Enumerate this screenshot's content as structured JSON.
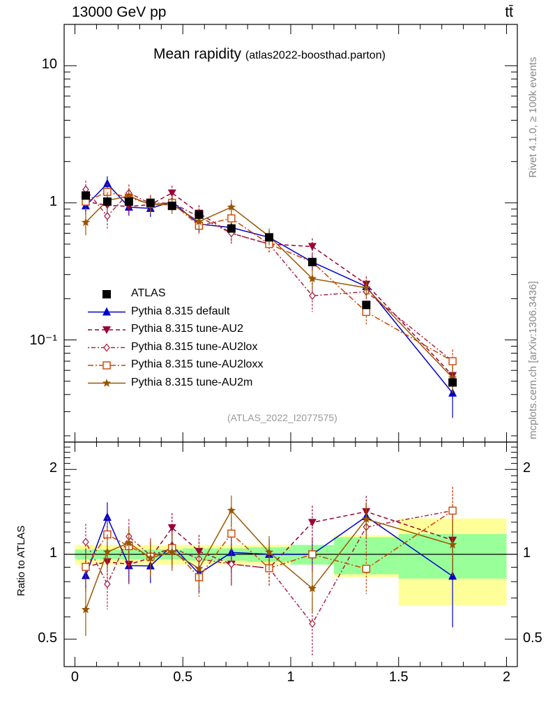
{
  "header": {
    "collision": "13000 GeV pp",
    "process": "tt̄"
  },
  "side": {
    "rivet": "Rivet 4.1.0, ≥ 100k events",
    "mcplots": "mcplots.cern.ch [arXiv:1306.3436]"
  },
  "chart_data": {
    "type": "line",
    "title": "Mean rapidity",
    "subtitle": "(atlas2022-boosthad.parton)",
    "analysis_label": "(ATLAS_2022_I2077575)",
    "xlabel": "",
    "ylabel": "",
    "ratio_ylabel": "Ratio to ATLAS",
    "xlim": [
      -0.05,
      2.05
    ],
    "ylim": [
      0.018,
      20
    ],
    "ylog": true,
    "ratio_ylim": [
      0.4,
      2.5
    ],
    "x_ticks": [
      "0",
      "0.5",
      "1",
      "1.5",
      "2"
    ],
    "x_tick_values": [
      0,
      0.5,
      1,
      1.5,
      2
    ],
    "y_ticks": [
      "10",
      "1",
      "10⁻¹"
    ],
    "y_tick_values": [
      10,
      1,
      0.1
    ],
    "ratio_ticks": [
      "2",
      "1",
      "0.5"
    ],
    "ratio_tick_values": [
      2,
      1,
      0.5
    ],
    "x": [
      0.05,
      0.15,
      0.25,
      0.35,
      0.45,
      0.575,
      0.725,
      0.9,
      1.1,
      1.35,
      1.75
    ],
    "bin_edges": [
      0,
      0.1,
      0.2,
      0.3,
      0.4,
      0.5,
      0.65,
      0.8,
      1.0,
      1.2,
      1.5,
      2.0
    ],
    "data": {
      "name": "ATLAS",
      "values": [
        1.13,
        1.02,
        1.02,
        1.0,
        0.95,
        0.82,
        0.65,
        0.56,
        0.37,
        0.18,
        0.049
      ],
      "band_stat": [
        0.04,
        0.04,
        0.04,
        0.04,
        0.04,
        0.05,
        0.05,
        0.06,
        0.08,
        0.15,
        0.18
      ],
      "band_total": [
        0.08,
        0.08,
        0.08,
        0.08,
        0.08,
        0.08,
        0.08,
        0.08,
        0.08,
        0.17,
        0.34
      ]
    },
    "series": [
      {
        "name": "Pythia 8.315 default",
        "color": "#0000cc",
        "dash": "",
        "marker": "triangle-up",
        "values": [
          0.95,
          1.38,
          0.93,
          0.91,
          1.02,
          0.7,
          0.66,
          0.56,
          0.37,
          0.245,
          0.041
        ],
        "errors": [
          0.12,
          0.18,
          0.12,
          0.12,
          0.13,
          0.1,
          0.1,
          0.07,
          0.05,
          0.03,
          0.014
        ]
      },
      {
        "name": "Pythia 8.315 tune-AU2",
        "color": "#990033",
        "dash": "6,4",
        "marker": "triangle-down",
        "values": [
          1.02,
          0.96,
          0.94,
          0.97,
          1.18,
          0.84,
          0.6,
          0.5,
          0.48,
          0.255,
          0.055
        ],
        "errors": [
          0.15,
          0.14,
          0.14,
          0.14,
          0.15,
          0.12,
          0.09,
          0.07,
          0.07,
          0.035,
          0.012
        ]
      },
      {
        "name": "Pythia 8.315 tune-AU2lox",
        "color": "#aa2244",
        "dash": "2,3,6,3",
        "marker": "diamond",
        "values": [
          1.25,
          0.8,
          1.18,
          0.99,
          1.0,
          0.79,
          0.6,
          0.5,
          0.21,
          0.225,
          0.07
        ],
        "errors": [
          0.2,
          0.15,
          0.18,
          0.15,
          0.15,
          0.12,
          0.1,
          0.07,
          0.05,
          0.035,
          0.015
        ]
      },
      {
        "name": "Pythia 8.315 tune-AU2loxx",
        "color": "#cc4400",
        "dash": "8,3,2,3",
        "marker": "open-square",
        "values": [
          1.02,
          1.2,
          1.09,
          0.98,
          1.0,
          0.68,
          0.77,
          0.5,
          0.37,
          0.16,
          0.07
        ],
        "errors": [
          0.14,
          0.18,
          0.16,
          0.14,
          0.14,
          0.1,
          0.11,
          0.07,
          0.05,
          0.03,
          0.015
        ]
      },
      {
        "name": "Pythia 8.315 tune-AU2m",
        "color": "#995500",
        "dash": "",
        "marker": "star",
        "values": [
          0.72,
          1.04,
          1.12,
          0.97,
          0.97,
          0.73,
          0.93,
          0.57,
          0.28,
          0.24,
          0.053
        ],
        "errors": [
          0.14,
          0.16,
          0.15,
          0.14,
          0.14,
          0.1,
          0.12,
          0.08,
          0.05,
          0.035,
          0.012
        ]
      }
    ]
  }
}
